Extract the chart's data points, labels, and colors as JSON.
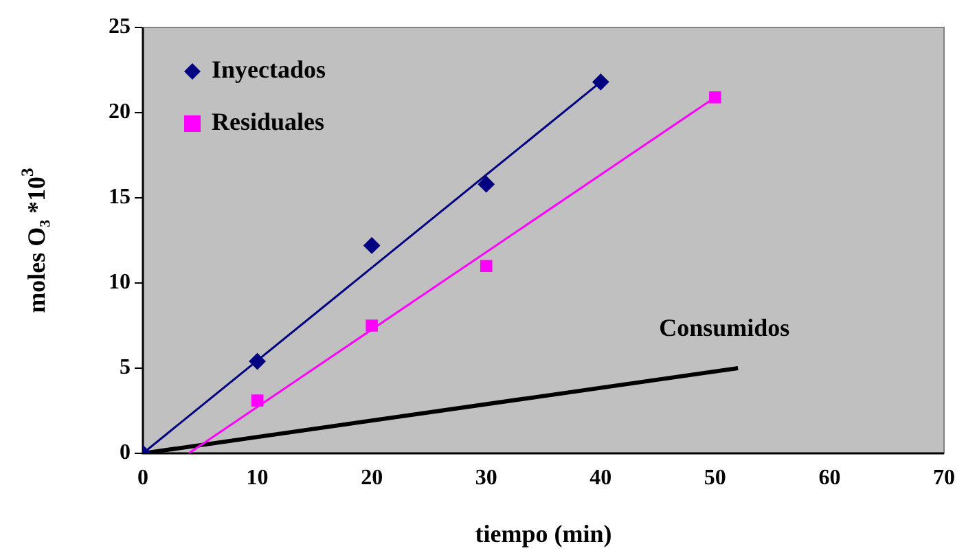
{
  "chart_data": {
    "type": "scatter",
    "xlabel": "tiempo (min)",
    "ylabel": "moles O₃ *10$^{3}$",
    "xlim": [
      0,
      70
    ],
    "xticks": [
      0,
      10,
      20,
      30,
      40,
      50,
      60,
      70
    ],
    "ylim": [
      0,
      25
    ],
    "yticks": [
      0,
      5,
      10,
      15,
      20,
      25
    ],
    "grid": false,
    "legend": "top left",
    "series": [
      {
        "name": "Inyectados",
        "color": "#000080",
        "marker": "diamond",
        "x": [
          0,
          10,
          20,
          30,
          40
        ],
        "values": [
          0,
          5.4,
          12.2,
          15.8,
          21.8
        ]
      },
      {
        "name": "Residuales",
        "color": "#ff00ff",
        "marker": "square",
        "x": [
          10,
          20,
          30,
          50
        ],
        "values": [
          3.1,
          7.5,
          11,
          20.9
        ]
      },
      {
        "type": "line",
        "color": "#000080",
        "x": [
          0,
          40
        ],
        "values": [
          0,
          21.8
        ]
      },
      {
        "type": "line",
        "color": "#ff00ff",
        "x": [
          4,
          50
        ],
        "values": [
          0,
          20.9
        ]
      },
      {
        "type": "line",
        "name": "Consumidos",
        "color": "#000000",
        "x": [
          0,
          52
        ],
        "values": [
          0,
          5
        ]
      }
    ]
  }
}
